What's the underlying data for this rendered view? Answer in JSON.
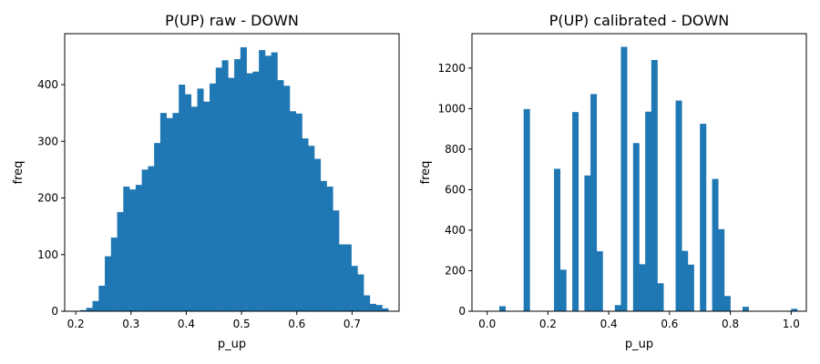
{
  "colors": {
    "bar": "#1f77b4",
    "axis": "#000000",
    "background": "#ffffff"
  },
  "chart_data": [
    {
      "type": "bar",
      "title": "P(UP) raw - DOWN",
      "xlabel": "p_up",
      "ylabel": "freq",
      "xlim": [
        0.18,
        0.785
      ],
      "ylim": [
        0,
        490
      ],
      "xticks": [
        0.2,
        0.3,
        0.4,
        0.5,
        0.6,
        0.7
      ],
      "xtick_labels": [
        "0.2",
        "0.3",
        "0.4",
        "0.5",
        "0.6",
        "0.7"
      ],
      "yticks": [
        0,
        100,
        200,
        300,
        400
      ],
      "ytick_labels": [
        "0",
        "100",
        "200",
        "300",
        "400"
      ],
      "bin_start": 0.208,
      "bin_width": 0.01115,
      "values": [
        2,
        6,
        18,
        45,
        97,
        130,
        175,
        220,
        215,
        223,
        250,
        256,
        297,
        350,
        341,
        350,
        400,
        383,
        361,
        393,
        370,
        402,
        430,
        443,
        412,
        445,
        466,
        420,
        423,
        461,
        451,
        457,
        408,
        398,
        353,
        349,
        305,
        292,
        269,
        230,
        220,
        178,
        118,
        118,
        80,
        65,
        28,
        13,
        11,
        5
      ]
    },
    {
      "type": "bar",
      "title": "P(UP) calibrated - DOWN",
      "xlabel": "p_up",
      "ylabel": "freq",
      "xlim": [
        -0.05,
        1.05
      ],
      "ylim": [
        0,
        1370
      ],
      "xticks": [
        0.0,
        0.2,
        0.4,
        0.6,
        0.8,
        1.0
      ],
      "xtick_labels": [
        "0.0",
        "0.2",
        "0.4",
        "0.6",
        "0.8",
        "1.0"
      ],
      "yticks": [
        0,
        200,
        400,
        600,
        800,
        1000,
        1200
      ],
      "ytick_labels": [
        "0",
        "200",
        "400",
        "600",
        "800",
        "1000",
        "1200"
      ],
      "bin_start": 0.0,
      "bin_width": 0.02,
      "values": [
        0,
        0,
        25,
        0,
        0,
        0,
        998,
        0,
        0,
        0,
        0,
        703,
        205,
        0,
        983,
        0,
        670,
        1072,
        296,
        0,
        0,
        30,
        1305,
        0,
        830,
        232,
        985,
        1240,
        138,
        0,
        0,
        1040,
        298,
        230,
        0,
        925,
        0,
        653,
        405,
        75,
        0,
        0,
        22,
        0,
        0,
        0,
        0,
        0,
        0,
        0,
        12
      ]
    }
  ]
}
